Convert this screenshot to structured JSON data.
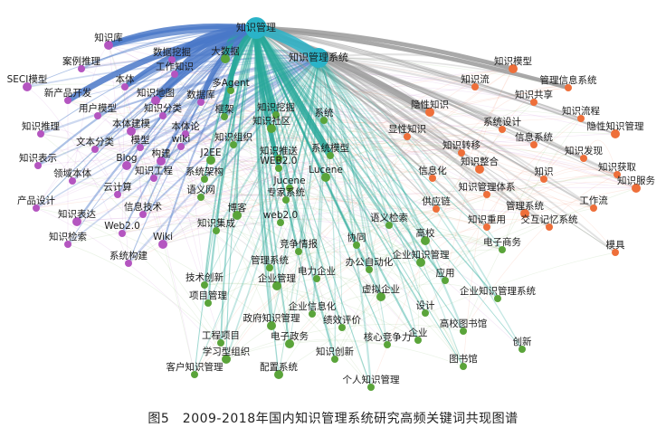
{
  "caption": "图5　2009-2018年国内知识管理系统研究高频关键词共现图谱",
  "colors": {
    "purple": "#b455c0",
    "orange": "#ee6f3a",
    "green": "#5aa43a",
    "teal": "#2ab3c8",
    "blue": "#4a78c8"
  },
  "hubs": [
    "知识管理",
    "知识管理系统"
  ],
  "clusters": {
    "purple": [
      "知识库",
      "数据挖掘",
      "工作知识",
      "案例推理",
      "SECI模型",
      "本体",
      "新产品开发",
      "用户模型",
      "知识地图",
      "数据库",
      "知识推理",
      "文本分类",
      "本体建模",
      "知识分类",
      "本体论",
      "知识表示",
      "Blog",
      "领域本体",
      "模型",
      "wiki",
      "构建",
      "知识工程",
      "云计算",
      "产品设计",
      "知识表达",
      "信息技术",
      "Web2.0",
      "知识检索",
      "Wiki",
      "系统构建"
    ],
    "orange": [
      "知识模型",
      "知识流",
      "管理信息系统",
      "知识共享",
      "隐性知识",
      "知识流程",
      "显性知识",
      "系统设计",
      "隐性知识管理",
      "知识发现",
      "信息系统",
      "知识转移",
      "知识整合",
      "知识获取",
      "信息化",
      "知识",
      "知识服务",
      "知识管理体系",
      "工作流",
      "供应链",
      "管理系统",
      "知识重用",
      "交互记忆系统",
      "模具"
    ],
    "green": [
      "大数据",
      "多Agent",
      "框架",
      "知识挖掘",
      "知识社区",
      "系统",
      "知识组织",
      "系统模型",
      "J2EE",
      "知识推送",
      "WEB2.0",
      "系统架构",
      "Lucene",
      "Jucene",
      "语义网",
      "专家系统",
      "博客",
      "web2.0",
      "知识集成",
      "语义检索",
      "高校",
      "竞争情报",
      "电子商务",
      "协同",
      "企业知识管理",
      "管理系统",
      "办公自动化",
      "技术创新",
      "企业管理",
      "电力企业",
      "应用",
      "项目管理",
      "虚拟企业",
      "企业知识管理系统",
      "企业信息化",
      "设计",
      "政府知识管理",
      "绩效评价",
      "高校图书馆",
      "工程项目",
      "电子政务",
      "核心竞争力",
      "企业",
      "创新",
      "学习型组织",
      "知识创新",
      "图书馆",
      "客户知识管理",
      "配置系统",
      "个人知识管理",
      "业务流程"
    ]
  }
}
